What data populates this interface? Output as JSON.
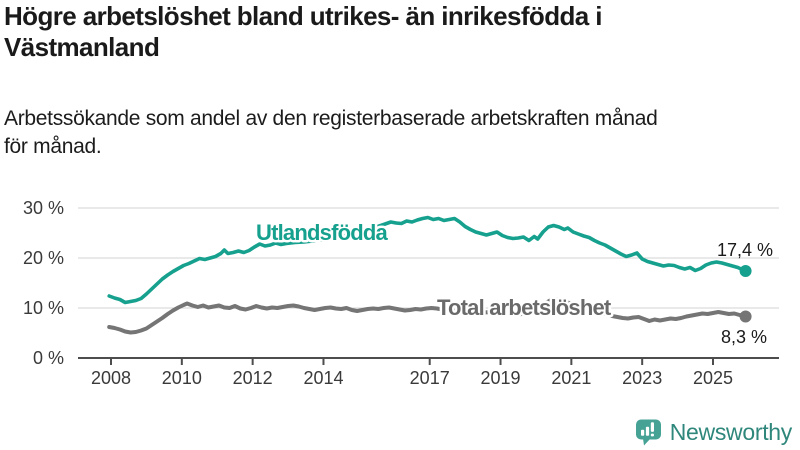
{
  "header": {
    "title_lines": [
      "Högre arbetslöshet bland utrikes- än inrikesfödda i",
      "Västmanland"
    ],
    "subtitle_lines": [
      "Arbetssökande som andel av den registerbaserade arbetskraften månad",
      "för månad."
    ]
  },
  "footer": {
    "brand": "Newsworthy"
  },
  "chart_data": {
    "type": "line",
    "title": "Högre arbetslöshet bland utrikes- än inrikesfödda i Västmanland",
    "subtitle": "Arbetssökande som andel av den registerbaserade arbetskraften månad för månad.",
    "unit": "%",
    "grid": "horizontal",
    "legend_position": "inline-labels",
    "ylim": [
      0,
      30
    ],
    "xlim": [
      2007.9,
      2026.1
    ],
    "y_ticks": [
      0,
      10,
      20,
      30
    ],
    "y_tick_labels": [
      "0 %",
      "10 %",
      "20 %",
      "30 %"
    ],
    "x_ticks": [
      2008,
      2010,
      2012,
      2014,
      2017,
      2019,
      2021,
      2023,
      2025
    ],
    "x_tick_labels": [
      "2008",
      "2010",
      "2012",
      "2014",
      "2017",
      "2019",
      "2021",
      "2023",
      "2025"
    ],
    "axis_color": "#4d4d4d",
    "gridline_color": "#dcdcdc",
    "series": [
      {
        "name": "Utlandsfödda",
        "color": "#16a08e",
        "end_value": 17.4,
        "end_label": "17,4 %",
        "points": [
          [
            2007.95,
            12.4
          ],
          [
            2008.1,
            12.0
          ],
          [
            2008.25,
            11.7
          ],
          [
            2008.4,
            11.1
          ],
          [
            2008.55,
            11.3
          ],
          [
            2008.7,
            11.5
          ],
          [
            2008.85,
            11.9
          ],
          [
            2009.0,
            12.8
          ],
          [
            2009.15,
            13.8
          ],
          [
            2009.3,
            14.8
          ],
          [
            2009.45,
            15.8
          ],
          [
            2009.6,
            16.6
          ],
          [
            2009.75,
            17.3
          ],
          [
            2009.9,
            17.9
          ],
          [
            2010.05,
            18.5
          ],
          [
            2010.2,
            18.9
          ],
          [
            2010.35,
            19.4
          ],
          [
            2010.5,
            19.9
          ],
          [
            2010.65,
            19.7
          ],
          [
            2010.8,
            20.0
          ],
          [
            2010.95,
            20.3
          ],
          [
            2011.1,
            20.9
          ],
          [
            2011.2,
            21.6
          ],
          [
            2011.3,
            20.9
          ],
          [
            2011.45,
            21.1
          ],
          [
            2011.6,
            21.4
          ],
          [
            2011.75,
            21.1
          ],
          [
            2011.9,
            21.5
          ],
          [
            2012.05,
            22.2
          ],
          [
            2012.2,
            22.8
          ],
          [
            2012.35,
            22.4
          ],
          [
            2012.5,
            22.6
          ],
          [
            2012.65,
            23.0
          ],
          [
            2012.8,
            22.7
          ],
          [
            2012.95,
            22.9
          ],
          [
            2013.2,
            23.1
          ],
          [
            2013.45,
            23.2
          ],
          [
            2013.7,
            23.4
          ],
          [
            2013.95,
            23.6
          ],
          [
            2014.2,
            23.9
          ],
          [
            2014.45,
            24.2
          ],
          [
            2014.7,
            24.6
          ],
          [
            2014.95,
            25.0
          ],
          [
            2015.2,
            25.5
          ],
          [
            2015.45,
            26.1
          ],
          [
            2015.7,
            26.7
          ],
          [
            2015.9,
            27.2
          ],
          [
            2016.05,
            27.0
          ],
          [
            2016.2,
            26.9
          ],
          [
            2016.35,
            27.4
          ],
          [
            2016.5,
            27.2
          ],
          [
            2016.65,
            27.6
          ],
          [
            2016.8,
            27.9
          ],
          [
            2016.95,
            28.1
          ],
          [
            2017.1,
            27.7
          ],
          [
            2017.25,
            27.9
          ],
          [
            2017.4,
            27.5
          ],
          [
            2017.55,
            27.7
          ],
          [
            2017.7,
            27.9
          ],
          [
            2017.85,
            27.2
          ],
          [
            2018.0,
            26.3
          ],
          [
            2018.15,
            25.7
          ],
          [
            2018.3,
            25.2
          ],
          [
            2018.45,
            24.9
          ],
          [
            2018.6,
            24.6
          ],
          [
            2018.75,
            24.9
          ],
          [
            2018.9,
            25.2
          ],
          [
            2019.05,
            24.5
          ],
          [
            2019.2,
            24.1
          ],
          [
            2019.35,
            23.9
          ],
          [
            2019.5,
            24.0
          ],
          [
            2019.65,
            24.2
          ],
          [
            2019.8,
            23.5
          ],
          [
            2019.95,
            24.3
          ],
          [
            2020.05,
            23.8
          ],
          [
            2020.2,
            25.2
          ],
          [
            2020.35,
            26.2
          ],
          [
            2020.5,
            26.5
          ],
          [
            2020.65,
            26.2
          ],
          [
            2020.8,
            25.7
          ],
          [
            2020.9,
            26.0
          ],
          [
            2021.05,
            25.2
          ],
          [
            2021.2,
            24.8
          ],
          [
            2021.35,
            24.4
          ],
          [
            2021.5,
            24.1
          ],
          [
            2021.65,
            23.5
          ],
          [
            2021.8,
            23.0
          ],
          [
            2021.95,
            22.6
          ],
          [
            2022.1,
            22.0
          ],
          [
            2022.25,
            21.4
          ],
          [
            2022.4,
            20.8
          ],
          [
            2022.55,
            20.3
          ],
          [
            2022.7,
            20.6
          ],
          [
            2022.85,
            21.0
          ],
          [
            2023.0,
            19.8
          ],
          [
            2023.15,
            19.3
          ],
          [
            2023.3,
            19.0
          ],
          [
            2023.45,
            18.7
          ],
          [
            2023.6,
            18.4
          ],
          [
            2023.75,
            18.6
          ],
          [
            2023.9,
            18.5
          ],
          [
            2024.05,
            18.1
          ],
          [
            2024.2,
            17.8
          ],
          [
            2024.35,
            18.1
          ],
          [
            2024.5,
            17.5
          ],
          [
            2024.65,
            17.9
          ],
          [
            2024.8,
            18.6
          ],
          [
            2024.95,
            19.0
          ],
          [
            2025.1,
            19.2
          ],
          [
            2025.25,
            19.0
          ],
          [
            2025.4,
            18.7
          ],
          [
            2025.55,
            18.4
          ],
          [
            2025.7,
            18.1
          ],
          [
            2025.92,
            17.4
          ]
        ]
      },
      {
        "name": "Total arbetslöshet",
        "color": "#757575",
        "end_value": 8.3,
        "end_label": "8,3 %",
        "points": [
          [
            2007.95,
            6.2
          ],
          [
            2008.1,
            6.0
          ],
          [
            2008.25,
            5.7
          ],
          [
            2008.4,
            5.3
          ],
          [
            2008.55,
            5.1
          ],
          [
            2008.7,
            5.2
          ],
          [
            2008.85,
            5.5
          ],
          [
            2009.0,
            5.9
          ],
          [
            2009.15,
            6.6
          ],
          [
            2009.3,
            7.3
          ],
          [
            2009.45,
            8.0
          ],
          [
            2009.6,
            8.8
          ],
          [
            2009.75,
            9.5
          ],
          [
            2009.9,
            10.1
          ],
          [
            2010.05,
            10.6
          ],
          [
            2010.15,
            10.9
          ],
          [
            2010.3,
            10.5
          ],
          [
            2010.45,
            10.2
          ],
          [
            2010.6,
            10.5
          ],
          [
            2010.75,
            10.1
          ],
          [
            2010.9,
            10.3
          ],
          [
            2011.05,
            10.5
          ],
          [
            2011.2,
            10.1
          ],
          [
            2011.35,
            10.0
          ],
          [
            2011.5,
            10.4
          ],
          [
            2011.65,
            9.9
          ],
          [
            2011.8,
            9.7
          ],
          [
            2011.95,
            10.0
          ],
          [
            2012.1,
            10.4
          ],
          [
            2012.25,
            10.1
          ],
          [
            2012.4,
            9.9
          ],
          [
            2012.55,
            10.1
          ],
          [
            2012.7,
            10.0
          ],
          [
            2012.85,
            10.2
          ],
          [
            2013.0,
            10.4
          ],
          [
            2013.15,
            10.5
          ],
          [
            2013.3,
            10.3
          ],
          [
            2013.45,
            10.0
          ],
          [
            2013.6,
            9.8
          ],
          [
            2013.75,
            9.6
          ],
          [
            2013.9,
            9.8
          ],
          [
            2014.05,
            10.0
          ],
          [
            2014.2,
            10.1
          ],
          [
            2014.35,
            9.9
          ],
          [
            2014.5,
            9.8
          ],
          [
            2014.65,
            10.0
          ],
          [
            2014.8,
            9.6
          ],
          [
            2014.95,
            9.4
          ],
          [
            2015.1,
            9.6
          ],
          [
            2015.25,
            9.8
          ],
          [
            2015.4,
            9.9
          ],
          [
            2015.55,
            9.8
          ],
          [
            2015.7,
            10.0
          ],
          [
            2015.85,
            10.1
          ],
          [
            2016.0,
            9.9
          ],
          [
            2016.15,
            9.7
          ],
          [
            2016.3,
            9.5
          ],
          [
            2016.45,
            9.6
          ],
          [
            2016.6,
            9.8
          ],
          [
            2016.75,
            9.7
          ],
          [
            2016.9,
            9.9
          ],
          [
            2017.05,
            10.0
          ],
          [
            2017.2,
            9.9
          ],
          [
            2017.35,
            9.7
          ],
          [
            2017.5,
            9.6
          ],
          [
            2017.65,
            9.5
          ],
          [
            2017.8,
            9.4
          ],
          [
            2017.95,
            9.5
          ],
          [
            2018.1,
            9.3
          ],
          [
            2018.25,
            9.2
          ],
          [
            2018.4,
            9.0
          ],
          [
            2018.55,
            9.1
          ],
          [
            2018.7,
            9.2
          ],
          [
            2018.85,
            9.1
          ],
          [
            2019.0,
            9.0
          ],
          [
            2019.15,
            8.9
          ],
          [
            2019.3,
            8.8
          ],
          [
            2019.45,
            8.7
          ],
          [
            2019.6,
            8.8
          ],
          [
            2019.75,
            8.9
          ],
          [
            2019.9,
            9.0
          ],
          [
            2020.05,
            9.3
          ],
          [
            2020.2,
            10.3
          ],
          [
            2020.35,
            11.3
          ],
          [
            2020.5,
            11.9
          ],
          [
            2020.65,
            11.6
          ],
          [
            2020.8,
            11.3
          ],
          [
            2020.95,
            11.0
          ],
          [
            2021.1,
            10.6
          ],
          [
            2021.25,
            10.2
          ],
          [
            2021.4,
            9.8
          ],
          [
            2021.55,
            9.5
          ],
          [
            2021.7,
            9.2
          ],
          [
            2021.85,
            9.0
          ],
          [
            2022.0,
            8.7
          ],
          [
            2022.15,
            8.4
          ],
          [
            2022.3,
            8.2
          ],
          [
            2022.45,
            8.0
          ],
          [
            2022.6,
            7.9
          ],
          [
            2022.75,
            8.1
          ],
          [
            2022.9,
            8.2
          ],
          [
            2023.05,
            7.8
          ],
          [
            2023.2,
            7.4
          ],
          [
            2023.35,
            7.7
          ],
          [
            2023.5,
            7.5
          ],
          [
            2023.65,
            7.7
          ],
          [
            2023.8,
            7.9
          ],
          [
            2023.95,
            7.8
          ],
          [
            2024.1,
            8.0
          ],
          [
            2024.25,
            8.3
          ],
          [
            2024.4,
            8.5
          ],
          [
            2024.55,
            8.7
          ],
          [
            2024.7,
            8.9
          ],
          [
            2024.85,
            8.8
          ],
          [
            2025.0,
            9.0
          ],
          [
            2025.15,
            9.2
          ],
          [
            2025.3,
            9.0
          ],
          [
            2025.45,
            8.8
          ],
          [
            2025.6,
            8.9
          ],
          [
            2025.75,
            8.6
          ],
          [
            2025.92,
            8.3
          ]
        ]
      }
    ]
  }
}
